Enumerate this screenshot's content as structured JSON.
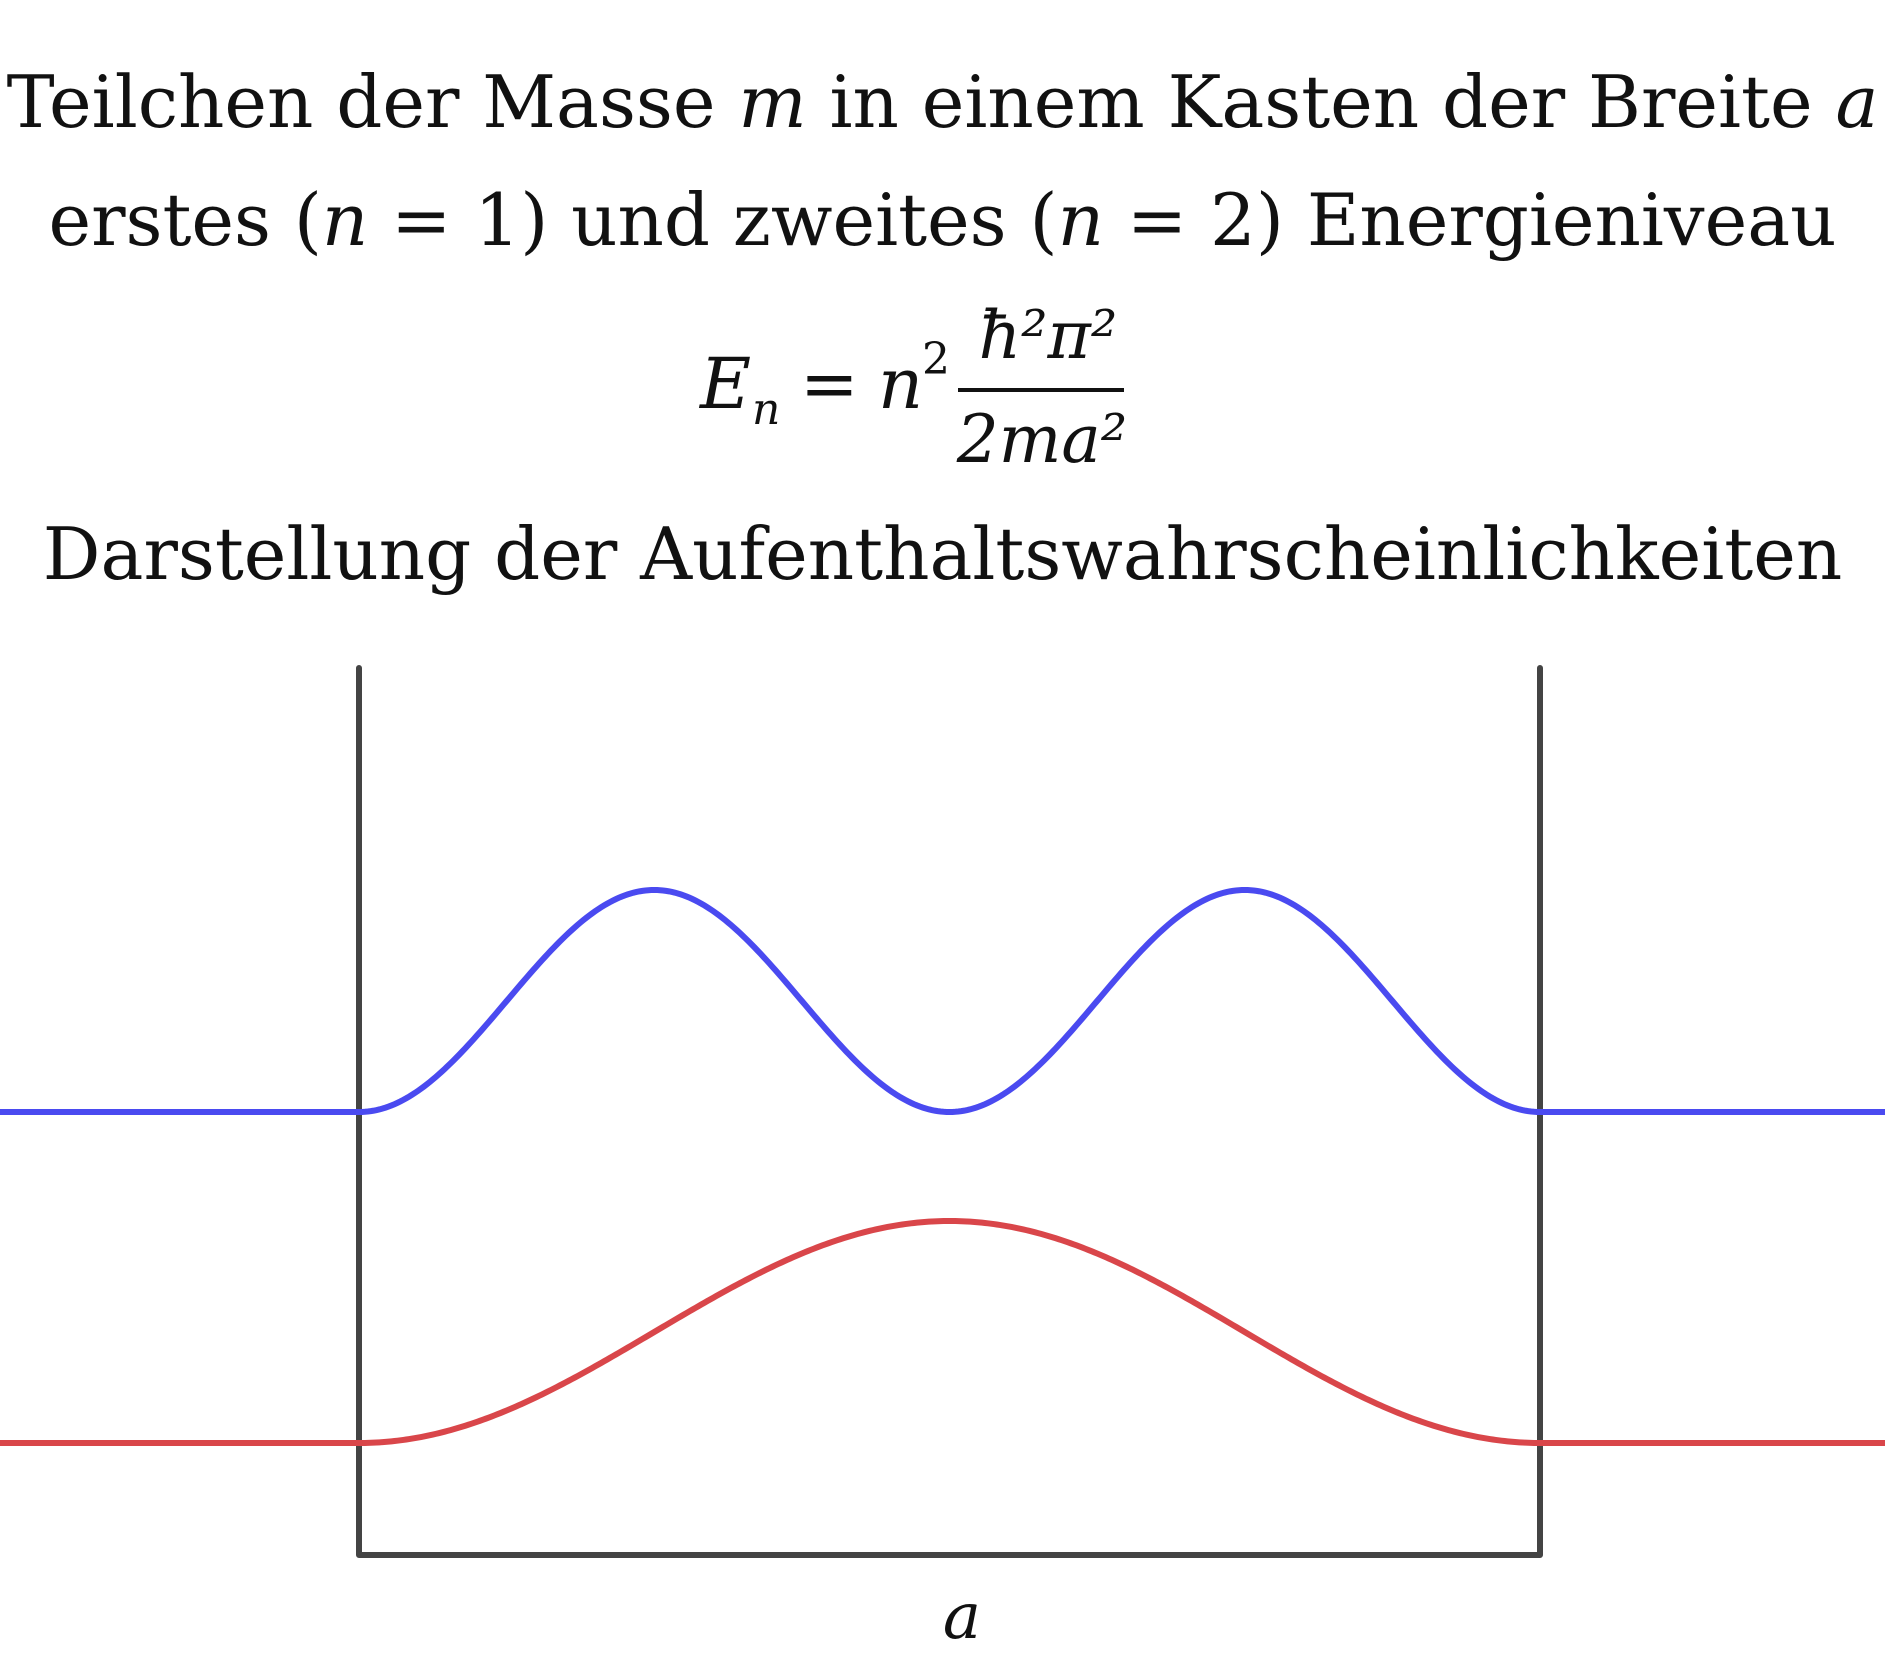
{
  "title": {
    "line1_pre": "Teilchen der Masse ",
    "line1_m": "m",
    "line1_mid": " in einem Kasten der Breite ",
    "line1_a": "a",
    "line2_pre": "erstes (",
    "line2_n1": "n",
    "line2_eq1": " = 1) und zweites (",
    "line2_n2": "n",
    "line2_eq2": " = 2) Energieniveau",
    "caption": "Darstellung der Aufenthaltswahrscheinlichkeiten"
  },
  "formula": {
    "lhs": "E",
    "lhs_sub": "n",
    "eq": "=",
    "factor": "n",
    "factor_sup": "2",
    "numerator": "ħ²π²",
    "denominator": "2ma²"
  },
  "diagram": {
    "width_label": "a",
    "colors": {
      "walls": "#444444",
      "level1": "#d9464a",
      "level2": "#4a4af0"
    },
    "levels": [
      {
        "n": 1,
        "color": "#d9464a",
        "shape": "sin^2(pi x / a)"
      },
      {
        "n": 2,
        "color": "#4a4af0",
        "shape": "sin^2(2 pi x / a)"
      }
    ]
  }
}
